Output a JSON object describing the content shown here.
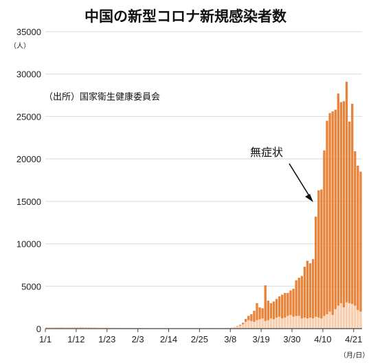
{
  "chart_data": {
    "type": "bar",
    "title": "中国の新型コロナ新規感染者数",
    "y_unit_label": "（人）",
    "x_unit_label": "（月/日）",
    "source_note": "（出所）国家衛生健康委員会",
    "annotation": "無症状",
    "ylim": [
      0,
      35000
    ],
    "y_ticks": [
      "0",
      "5000",
      "10000",
      "15000",
      "20000",
      "25000",
      "30000",
      "35000"
    ],
    "x_ticks": [
      "1/1",
      "1/12",
      "1/23",
      "2/3",
      "2/14",
      "2/25",
      "3/8",
      "3/19",
      "3/30",
      "4/10",
      "4/21"
    ],
    "grid": "horizontal",
    "stacked": true,
    "colors": {
      "asymptomatic": "#e8833a",
      "symptomatic": "#f8cfae",
      "grid": "#d9d9d9",
      "axis": "#444444"
    },
    "series": [
      {
        "key": "symptomatic",
        "values": [
          150,
          160,
          140,
          150,
          160,
          170,
          150,
          140,
          160,
          150,
          180,
          170,
          200,
          190,
          170,
          160,
          150,
          140,
          130,
          120,
          130,
          120,
          110,
          100,
          110,
          100,
          90,
          80,
          90,
          80,
          90,
          80,
          70,
          80,
          70,
          60,
          70,
          60,
          50,
          60,
          50,
          50,
          60,
          50,
          50,
          60,
          50,
          40,
          50,
          40,
          50,
          40,
          50,
          60,
          50,
          60,
          50,
          50,
          60,
          70,
          60,
          50,
          60,
          70,
          80,
          100,
          120,
          180,
          250,
          350,
          500,
          800,
          1000,
          900,
          800,
          1000,
          1100,
          1200,
          900,
          1000,
          1200,
          1100,
          1300,
          1400,
          1200,
          1300,
          1500,
          1600,
          1400,
          1500,
          1500,
          1200,
          1300,
          1200,
          1300,
          1200,
          1400,
          1300,
          1200,
          1500,
          1700,
          2000,
          1600,
          2300,
          2700,
          3000,
          2500,
          3100,
          3000,
          2900,
          2700,
          2200,
          2000
        ]
      },
      {
        "key": "asymptomatic",
        "values": [
          0,
          0,
          0,
          0,
          0,
          0,
          0,
          0,
          0,
          0,
          0,
          0,
          0,
          0,
          0,
          0,
          0,
          0,
          0,
          0,
          0,
          0,
          0,
          0,
          0,
          0,
          0,
          0,
          0,
          0,
          0,
          0,
          0,
          0,
          0,
          0,
          0,
          0,
          0,
          0,
          0,
          0,
          0,
          0,
          0,
          0,
          0,
          0,
          0,
          0,
          0,
          0,
          0,
          0,
          0,
          0,
          0,
          0,
          0,
          0,
          0,
          0,
          0,
          0,
          0,
          0,
          0,
          0,
          50,
          100,
          200,
          350,
          500,
          800,
          1300,
          2000,
          1400,
          1200,
          4200,
          2300,
          1800,
          2100,
          2200,
          2400,
          2800,
          2900,
          2700,
          2900,
          3300,
          4200,
          4500,
          5000,
          6000,
          6800,
          6400,
          7000,
          11800,
          15000,
          15200,
          19500,
          22800,
          23400,
          24000,
          23500,
          25000,
          23700,
          24300,
          26000,
          21400,
          23600,
          18200,
          17000,
          16500
        ]
      }
    ]
  }
}
